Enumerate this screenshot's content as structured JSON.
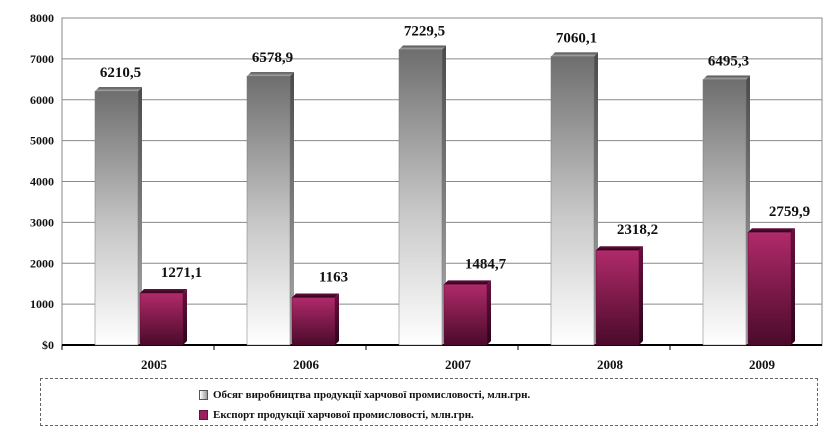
{
  "chart_data": {
    "type": "bar",
    "categories": [
      "2005",
      "2006",
      "2007",
      "2008",
      "2009"
    ],
    "series": [
      {
        "name": "Обсяг виробництва продукції харчової промисловості, млн.грн.",
        "values": [
          6210.5,
          6578.9,
          7229.5,
          7060.1,
          6495.3
        ],
        "labels": [
          "6210,5",
          "6578,9",
          "7229,5",
          "7060,1",
          "6495,3"
        ],
        "color": "#8c8c8c"
      },
      {
        "name": "Експорт продукції харчової промисловості, млн.грн.",
        "values": [
          1271.1,
          1163,
          1484.7,
          2318.2,
          2759.9
        ],
        "labels": [
          "1271,1",
          "1163",
          "1484,7",
          "2318,2",
          "2759,9"
        ],
        "color": "#9b1f5c"
      }
    ],
    "ylim": [
      0,
      8000
    ],
    "yticks": [
      "$0",
      "1000",
      "2000",
      "3000",
      "4000",
      "5000",
      "6000",
      "7000",
      "8000"
    ],
    "ytick_values": [
      0,
      1000,
      2000,
      3000,
      4000,
      5000,
      6000,
      7000,
      8000
    ],
    "grid": true,
    "legend_position": "bottom"
  }
}
